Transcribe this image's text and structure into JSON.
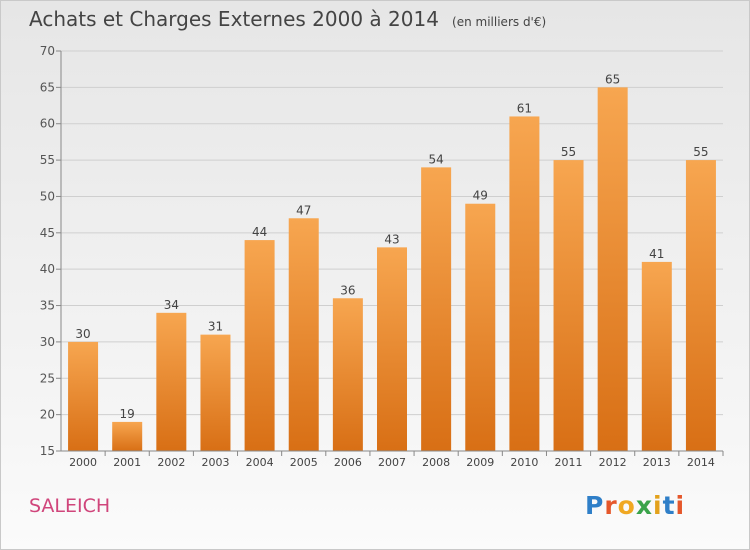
{
  "title": "Achats et Charges Externes 2000 à 2014",
  "unit": "(en milliers d'€)",
  "commune": "SALEICH",
  "logo": {
    "text": "Proxiti",
    "letters": [
      "P",
      "r",
      "o",
      "x",
      "i",
      "t",
      "i"
    ],
    "colors": [
      "#2f7fc8",
      "#e5572b",
      "#f0a822",
      "#3aa34a",
      "#e3a21c",
      "#2f7fc8",
      "#e5572b"
    ]
  },
  "colors": {
    "bar_top": "#f7a650",
    "bar_bottom": "#d86f15",
    "grid": "#cfcfcf",
    "commune_text": "#d0457b"
  },
  "chart_data": {
    "type": "bar",
    "title": "Achats et Charges Externes 2000 à 2014",
    "subtitle": "(en milliers d'€)",
    "categories": [
      "2000",
      "2001",
      "2002",
      "2003",
      "2004",
      "2005",
      "2006",
      "2007",
      "2008",
      "2009",
      "2010",
      "2011",
      "2012",
      "2013",
      "2014"
    ],
    "values": [
      30,
      19,
      34,
      31,
      44,
      47,
      36,
      43,
      54,
      49,
      61,
      55,
      65,
      41,
      55
    ],
    "ylim": [
      15,
      70
    ],
    "yticks": [
      15,
      20,
      25,
      30,
      35,
      40,
      45,
      50,
      55,
      60,
      65,
      70
    ],
    "grid": true,
    "data_labels": true,
    "legend": "none"
  }
}
